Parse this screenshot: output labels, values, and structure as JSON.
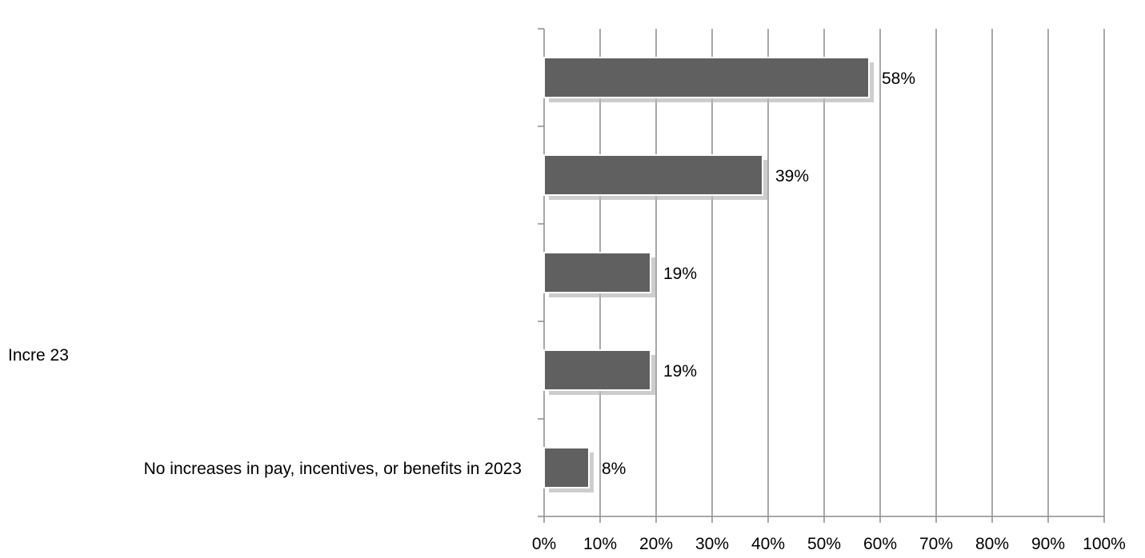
{
  "chart_data": {
    "type": "bar",
    "orientation": "horizontal",
    "categories": [
      "",
      "",
      "",
      "Incre 23",
      "No increases in pay, incentives, or benefits in 2023"
    ],
    "values": [
      58,
      39,
      19,
      19,
      8
    ],
    "data_labels": [
      "58%",
      "39%",
      "19%",
      "19%",
      "8%"
    ],
    "x_ticks": [
      "0%",
      "10%",
      "20%",
      "30%",
      "40%",
      "50%",
      "60%",
      "70%",
      "80%",
      "90%",
      "100%"
    ],
    "xlim": [
      0,
      100
    ],
    "grid": true,
    "title": "",
    "xlabel": "",
    "ylabel": "",
    "colors": {
      "bar": "#606060",
      "grid": "#8c8c8c",
      "axis": "#8c8c8c",
      "shadow": "#b8b8b8"
    }
  }
}
